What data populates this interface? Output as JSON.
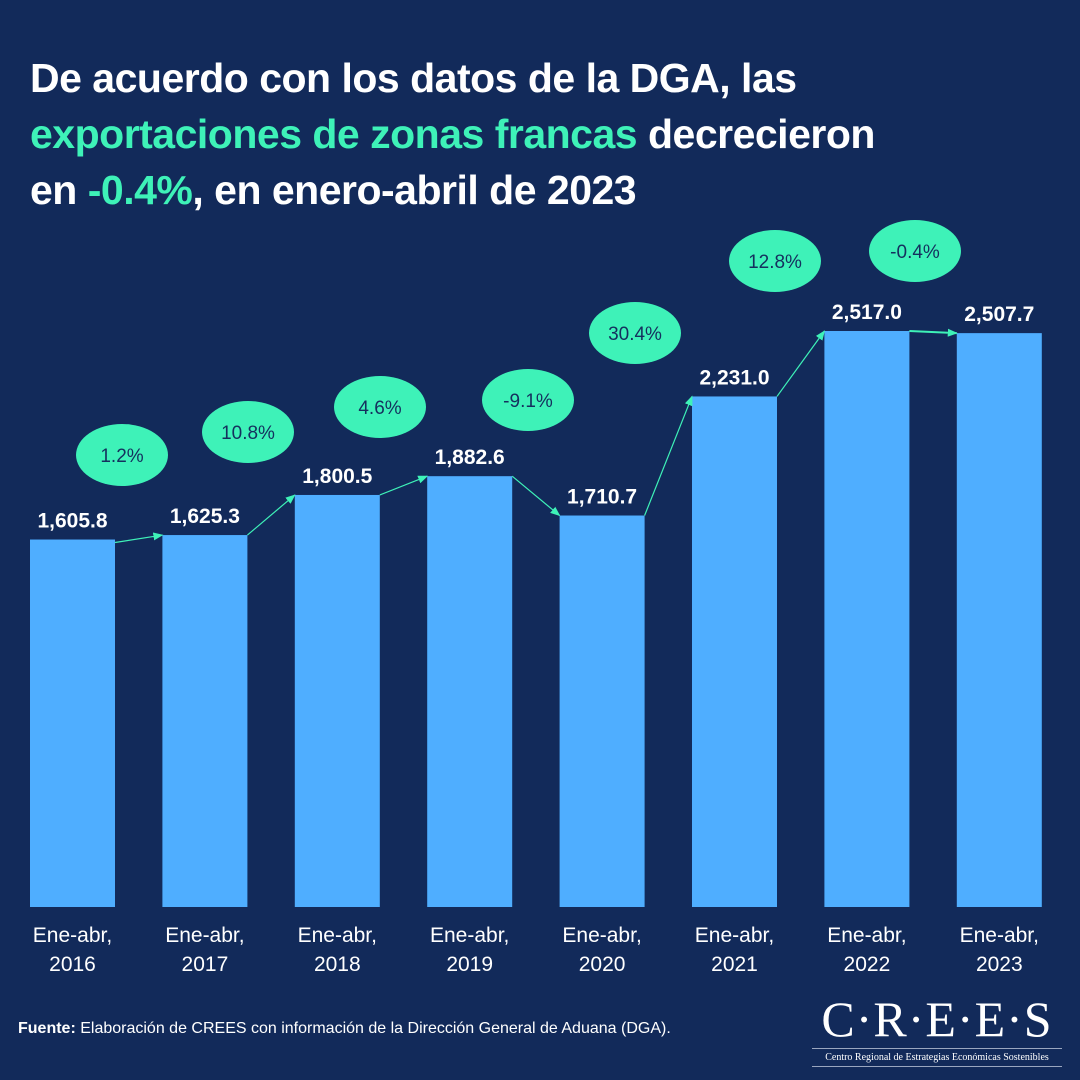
{
  "title": {
    "line1": "De acuerdo con los datos de la DGA, las",
    "line2_highlight": "exportaciones de zonas francas",
    "line2_rest": " decrecieron",
    "line3_start": "en ",
    "line3_highlight": "-0.4%",
    "line3_rest": ", en enero-abril de 2023"
  },
  "colors": {
    "background": "#122a5a",
    "bar": "#4faeff",
    "accent": "#3ef2b8",
    "bubble_text": "#15305e",
    "text": "#ffffff"
  },
  "chart_data": {
    "type": "bar",
    "title": "De acuerdo con los datos de la DGA, las exportaciones de zonas francas decrecieron en -0.4%, en enero-abril de 2023",
    "xlabel": "",
    "ylabel": "",
    "ylim": [
      0,
      2517.0
    ],
    "grid": false,
    "legend": "none",
    "categories": [
      "Ene-abr, 2016",
      "Ene-abr, 2017",
      "Ene-abr, 2018",
      "Ene-abr, 2019",
      "Ene-abr, 2020",
      "Ene-abr, 2021",
      "Ene-abr, 2022",
      "Ene-abr, 2023"
    ],
    "category_lines": [
      [
        "Ene-abr,",
        "2016"
      ],
      [
        "Ene-abr,",
        "2017"
      ],
      [
        "Ene-abr,",
        "2018"
      ],
      [
        "Ene-abr,",
        "2019"
      ],
      [
        "Ene-abr,",
        "2020"
      ],
      [
        "Ene-abr,",
        "2021"
      ],
      [
        "Ene-abr,",
        "2022"
      ],
      [
        "Ene-abr,",
        "2023"
      ]
    ],
    "values": [
      1605.8,
      1625.3,
      1800.5,
      1882.6,
      1710.7,
      2231.0,
      2517.0,
      2507.7
    ],
    "value_labels": [
      "1,605.8",
      "1,625.3",
      "1,800.5",
      "1,882.6",
      "1,710.7",
      "2,231.0",
      "2,517.0",
      "2,507.7"
    ],
    "growth_labels": [
      "1.2%",
      "10.8%",
      "4.6%",
      "-9.1%",
      "30.4%",
      "12.8%",
      "-0.4%"
    ],
    "growth_values": [
      1.2,
      10.8,
      4.6,
      -9.1,
      30.4,
      12.8,
      -0.4
    ]
  },
  "footer": {
    "label": "Fuente:",
    "text": " Elaboración de CREES con información de la Dirección General de Aduana (DGA)."
  },
  "logo": {
    "mark": "C·R·E·E·S",
    "subtitle": "Centro Regional de Estrategias Económicas Sostenibles"
  }
}
